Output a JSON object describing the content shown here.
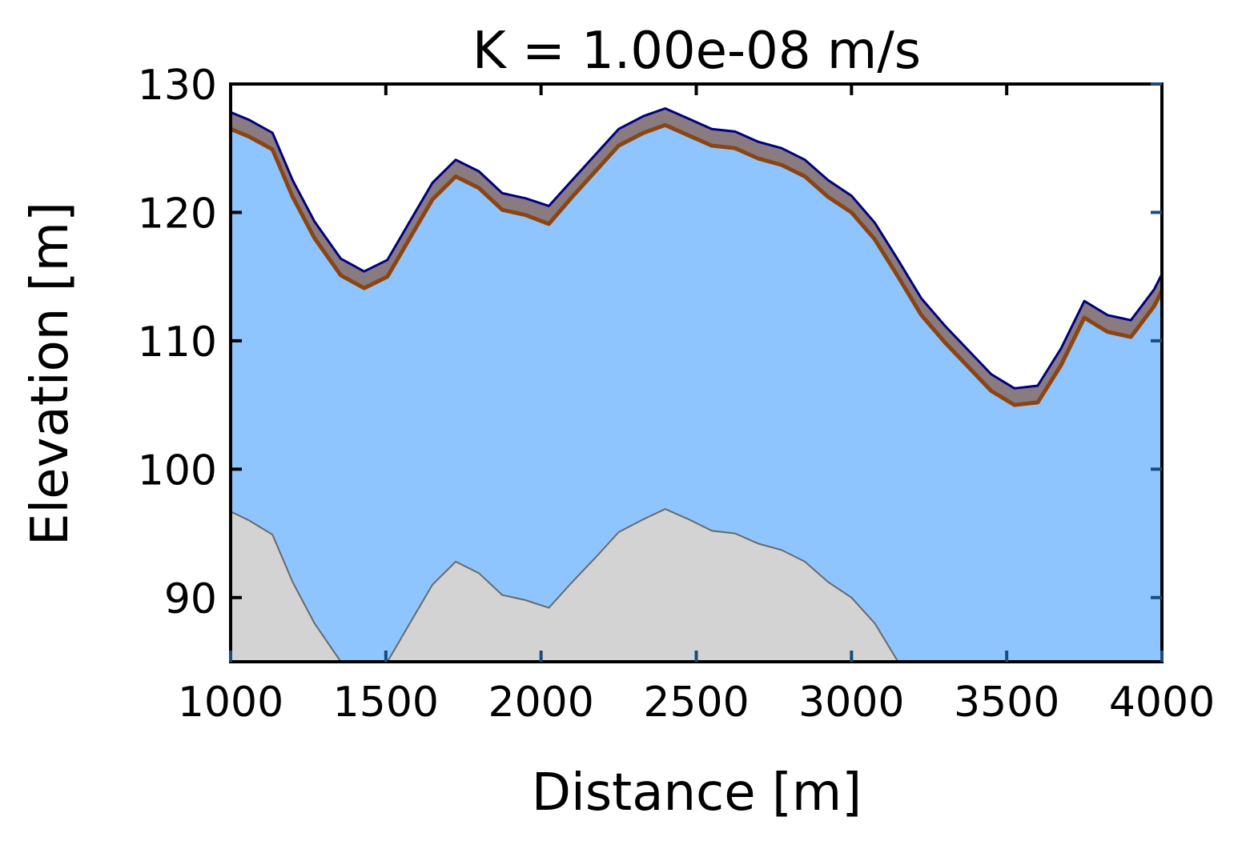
{
  "chart_data": {
    "type": "area",
    "title": "K = 1.00e-08 m/s",
    "xlabel": "Distance [m]",
    "ylabel": "Elevation [m]",
    "xlim": [
      1000,
      4000
    ],
    "ylim": [
      85,
      130
    ],
    "x_ticks": [
      1000,
      1500,
      2000,
      2500,
      3000,
      3500,
      4000
    ],
    "y_ticks": [
      90,
      100,
      110,
      120,
      130
    ],
    "grid": false,
    "x": [
      1000,
      1060,
      1135,
      1200,
      1270,
      1355,
      1430,
      1505,
      1575,
      1650,
      1725,
      1800,
      1875,
      1950,
      2025,
      2100,
      2175,
      2250,
      2330,
      2400,
      2475,
      2550,
      2625,
      2700,
      2775,
      2850,
      2925,
      3000,
      3075,
      3150,
      3225,
      3300,
      3375,
      3450,
      3525,
      3600,
      3675,
      3750,
      3825,
      3900,
      3975,
      4000
    ],
    "series": [
      {
        "values": [
          127.8,
          127.2,
          126.2,
          122.5,
          119.3,
          116.4,
          115.4,
          116.3,
          119.2,
          122.3,
          124.1,
          123.2,
          121.5,
          121.1,
          120.5,
          122.5,
          124.5,
          126.5,
          127.5,
          128.1,
          127.3,
          126.5,
          126.3,
          125.5,
          125.0,
          124.1,
          122.5,
          121.3,
          119.2,
          116.3,
          113.3,
          111.2,
          109.3,
          107.4,
          106.3,
          106.5,
          109.4,
          113.1,
          112.0,
          111.6,
          114.0,
          115.2
        ]
      },
      {
        "values": [
          126.5,
          125.9,
          124.9,
          121.2,
          118.0,
          115.1,
          114.1,
          115.0,
          117.9,
          121.0,
          122.8,
          121.9,
          120.2,
          119.8,
          119.1,
          121.2,
          123.2,
          125.2,
          126.2,
          126.8,
          126.0,
          125.2,
          125.0,
          124.2,
          123.7,
          122.8,
          121.2,
          120.0,
          117.9,
          115.0,
          112.0,
          109.9,
          108.0,
          106.1,
          105.0,
          105.2,
          108.1,
          111.8,
          110.7,
          110.3,
          112.7,
          113.9
        ]
      },
      {
        "values": [
          96.7,
          96.0,
          94.9,
          91.2,
          88.0,
          85.0,
          85.0,
          85.0,
          87.9,
          91.0,
          92.8,
          91.9,
          90.2,
          89.8,
          89.2,
          91.2,
          93.1,
          95.1,
          96.1,
          96.9,
          96.1,
          95.2,
          95.0,
          94.2,
          93.7,
          92.8,
          91.2,
          90.0,
          88.0,
          85.0,
          85.0,
          85.0,
          85.0,
          85.0,
          85.0,
          85.0,
          85.0,
          85.0,
          85.0,
          85.0,
          85.0,
          85.0
        ]
      }
    ],
    "colors": {
      "fill_main": "#8fc5ff",
      "fill_top_band": "#8a7b81",
      "line_top": "#000080",
      "line_band_bottom": "#8b4513",
      "fill_bottom": "#d3d3d3",
      "line_bottom": "#696969",
      "axis": "#000000",
      "tick_inside": "#1a4d7a"
    }
  }
}
